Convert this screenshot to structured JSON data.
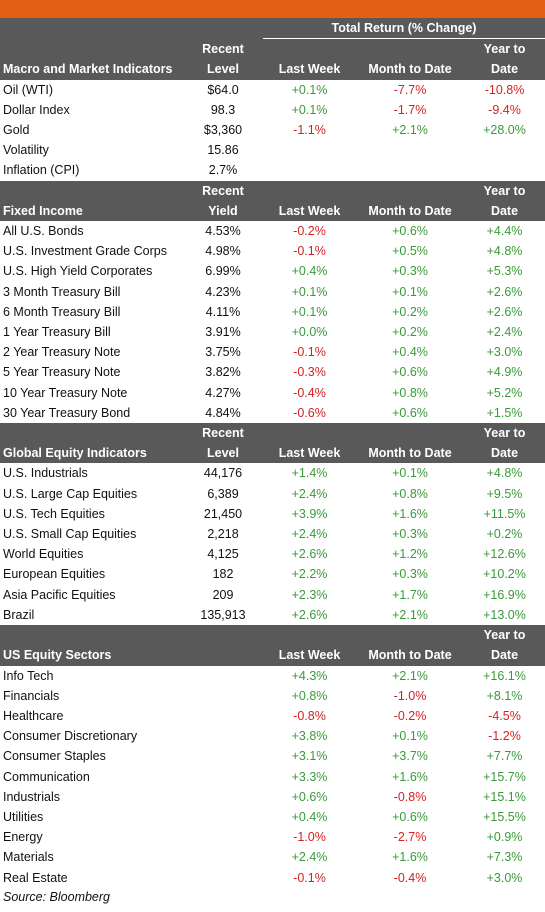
{
  "header": {
    "total_return_label": "Total Return (% Change)",
    "recent": "Recent",
    "level": "Level",
    "yield": "Yield",
    "last_week": "Last Week",
    "month_to_date": "Month to Date",
    "year_to": "Year to",
    "date": "Date"
  },
  "colors": {
    "accent": "#e35f14",
    "header_bg": "#595959",
    "positive": "#3a9a3a",
    "negative": "#d22222"
  },
  "sections": [
    {
      "title": "Macro and Market Indicators",
      "level_label": "Level",
      "rows": [
        {
          "name": "Oil (WTI)",
          "level": "$64.0",
          "wk": "+0.1%",
          "mtd": "-7.7%",
          "ytd": "-10.8%"
        },
        {
          "name": "Dollar Index",
          "level": "98.3",
          "wk": "+0.1%",
          "mtd": "-1.7%",
          "ytd": "-9.4%"
        },
        {
          "name": "Gold",
          "level": "$3,360",
          "wk": "-1.1%",
          "mtd": "+2.1%",
          "ytd": "+28.0%"
        },
        {
          "name": "Volatility",
          "level": "15.86",
          "wk": "",
          "mtd": "",
          "ytd": ""
        },
        {
          "name": "Inflation (CPI)",
          "level": "2.7%",
          "wk": "",
          "mtd": "",
          "ytd": ""
        }
      ]
    },
    {
      "title": "Fixed Income",
      "level_label": "Yield",
      "rows": [
        {
          "name": "All U.S. Bonds",
          "level": "4.53%",
          "wk": "-0.2%",
          "mtd": "+0.6%",
          "ytd": "+4.4%"
        },
        {
          "name": "U.S. Investment Grade Corps",
          "level": "4.98%",
          "wk": "-0.1%",
          "mtd": "+0.5%",
          "ytd": "+4.8%"
        },
        {
          "name": "U.S. High Yield Corporates",
          "level": "6.99%",
          "wk": "+0.4%",
          "mtd": "+0.3%",
          "ytd": "+5.3%"
        },
        {
          "name": "3 Month Treasury Bill",
          "level": "4.23%",
          "wk": "+0.1%",
          "mtd": "+0.1%",
          "ytd": "+2.6%"
        },
        {
          "name": "6 Month Treasury Bill",
          "level": "4.11%",
          "wk": "+0.1%",
          "mtd": "+0.2%",
          "ytd": "+2.6%"
        },
        {
          "name": "1 Year Treasury Bill",
          "level": "3.91%",
          "wk": "+0.0%",
          "mtd": "+0.2%",
          "ytd": "+2.4%"
        },
        {
          "name": "2 Year Treasury Note",
          "level": "3.75%",
          "wk": "-0.1%",
          "mtd": "+0.4%",
          "ytd": "+3.0%"
        },
        {
          "name": "5 Year Treasury Note",
          "level": "3.82%",
          "wk": "-0.3%",
          "mtd": "+0.6%",
          "ytd": "+4.9%"
        },
        {
          "name": "10 Year Treasury Note",
          "level": "4.27%",
          "wk": "-0.4%",
          "mtd": "+0.8%",
          "ytd": "+5.2%"
        },
        {
          "name": "30 Year Treasury Bond",
          "level": "4.84%",
          "wk": "-0.6%",
          "mtd": "+0.6%",
          "ytd": "+1.5%"
        }
      ]
    },
    {
      "title": "Global Equity Indicators",
      "level_label": "Level",
      "rows": [
        {
          "name": "U.S. Industrials",
          "level": "44,176",
          "wk": "+1.4%",
          "mtd": "+0.1%",
          "ytd": "+4.8%"
        },
        {
          "name": "U.S. Large Cap Equities",
          "level": "6,389",
          "wk": "+2.4%",
          "mtd": "+0.8%",
          "ytd": "+9.5%"
        },
        {
          "name": "U.S. Tech Equities",
          "level": "21,450",
          "wk": "+3.9%",
          "mtd": "+1.6%",
          "ytd": "+11.5%"
        },
        {
          "name": "U.S. Small Cap Equities",
          "level": "2,218",
          "wk": "+2.4%",
          "mtd": "+0.3%",
          "ytd": "+0.2%"
        },
        {
          "name": "World Equities",
          "level": "4,125",
          "wk": "+2.6%",
          "mtd": "+1.2%",
          "ytd": "+12.6%"
        },
        {
          "name": "European Equities",
          "level": "182",
          "wk": "+2.2%",
          "mtd": "+0.3%",
          "ytd": "+10.2%"
        },
        {
          "name": "Asia Pacific Equities",
          "level": "209",
          "wk": "+2.3%",
          "mtd": "+1.7%",
          "ytd": "+16.9%"
        },
        {
          "name": "Brazil",
          "level": "135,913",
          "wk": "+2.6%",
          "mtd": "+2.1%",
          "ytd": "+13.0%"
        }
      ]
    },
    {
      "title": "US Equity Sectors",
      "level_label": "",
      "rows": [
        {
          "name": "Info Tech",
          "level": "",
          "wk": "+4.3%",
          "mtd": "+2.1%",
          "ytd": "+16.1%"
        },
        {
          "name": "Financials",
          "level": "",
          "wk": "+0.8%",
          "mtd": "-1.0%",
          "ytd": "+8.1%"
        },
        {
          "name": "Healthcare",
          "level": "",
          "wk": "-0.8%",
          "mtd": "-0.2%",
          "ytd": "-4.5%"
        },
        {
          "name": "Consumer Discretionary",
          "level": "",
          "wk": "+3.8%",
          "mtd": "+0.1%",
          "ytd": "-1.2%"
        },
        {
          "name": "Consumer Staples",
          "level": "",
          "wk": "+3.1%",
          "mtd": "+3.7%",
          "ytd": "+7.7%"
        },
        {
          "name": "Communication",
          "level": "",
          "wk": "+3.3%",
          "mtd": "+1.6%",
          "ytd": "+15.7%"
        },
        {
          "name": "Industrials",
          "level": "",
          "wk": "+0.6%",
          "mtd": "-0.8%",
          "ytd": "+15.1%"
        },
        {
          "name": "Utilities",
          "level": "",
          "wk": "+0.4%",
          "mtd": "+0.6%",
          "ytd": "+15.5%"
        },
        {
          "name": "Energy",
          "level": "",
          "wk": "-1.0%",
          "mtd": "-2.7%",
          "ytd": "+0.9%"
        },
        {
          "name": "Materials",
          "level": "",
          "wk": "+2.4%",
          "mtd": "+1.6%",
          "ytd": "+7.3%"
        },
        {
          "name": "Real Estate",
          "level": "",
          "wk": "-0.1%",
          "mtd": "-0.4%",
          "ytd": "+3.0%"
        }
      ]
    }
  ],
  "source": "Source: Bloomberg"
}
